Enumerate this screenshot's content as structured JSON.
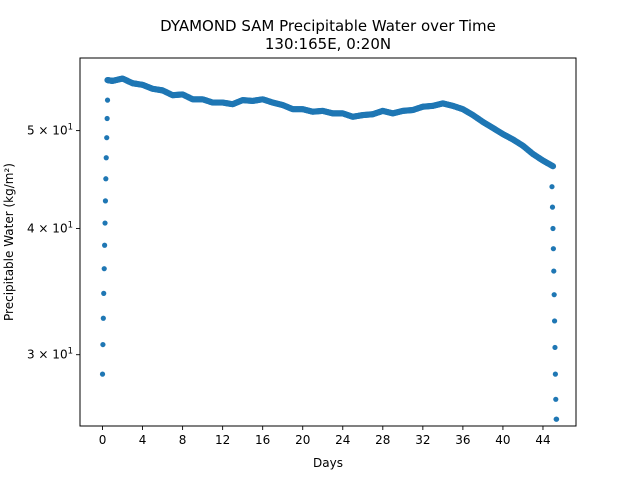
{
  "chart_data": {
    "type": "scatter",
    "title": "DYAMOND SAM Precipitable Water over Time",
    "subtitle": "130:165E, 0:20N",
    "xlabel": "Days",
    "ylabel": "Precipitable Water (kg/m²)",
    "xlim": [
      -2.25,
      47.3
    ],
    "ylim": [
      25.5,
      59.0
    ],
    "yscale": "log",
    "x_ticks": [
      0,
      4,
      8,
      12,
      16,
      20,
      24,
      28,
      32,
      36,
      40,
      44
    ],
    "y_ticks": [
      {
        "value": 30,
        "base": "3",
        "exp": "1"
      },
      {
        "value": 40,
        "base": "4",
        "exp": "1"
      },
      {
        "value": 50,
        "base": "5",
        "exp": "1"
      }
    ],
    "grid": false,
    "series_color": "#1f77b4",
    "series": [
      {
        "ramp_up": {
          "x": [
            0.0,
            0.04,
            0.08,
            0.12,
            0.17,
            0.21,
            0.25,
            0.29,
            0.33,
            0.37,
            0.42,
            0.46,
            0.5
          ],
          "y": [
            28.7,
            30.7,
            32.6,
            34.5,
            36.5,
            38.5,
            40.5,
            42.6,
            44.8,
            47.0,
            49.2,
            51.4,
            53.6
          ]
        },
        "main": {
          "x": [
            0.5,
            1,
            2,
            3,
            4,
            5,
            6,
            7,
            8,
            9,
            10,
            11,
            12,
            13,
            14,
            15,
            16,
            17,
            18,
            19,
            20,
            21,
            22,
            23,
            24,
            25,
            26,
            27,
            28,
            29,
            30,
            31,
            32,
            33,
            34,
            35,
            36,
            37,
            38,
            39,
            40,
            41,
            42,
            43,
            44,
            45
          ],
          "y": [
            56.1,
            56.0,
            56.3,
            55.7,
            55.5,
            55.0,
            54.8,
            54.2,
            54.3,
            53.7,
            53.7,
            53.3,
            53.3,
            53.1,
            53.6,
            53.5,
            53.7,
            53.3,
            53.0,
            52.5,
            52.5,
            52.2,
            52.3,
            52.0,
            52.0,
            51.6,
            51.8,
            51.9,
            52.3,
            52.0,
            52.3,
            52.4,
            52.8,
            52.9,
            53.2,
            52.9,
            52.5,
            51.8,
            51.0,
            50.3,
            49.6,
            49.0,
            48.3,
            47.4,
            46.7,
            46.1
          ]
        },
        "ramp_down": {
          "x": [
            44.9,
            44.95,
            45.0,
            45.04,
            45.08,
            45.12,
            45.16,
            45.2,
            45.24,
            45.28,
            45.32,
            45.36
          ],
          "y": [
            44.0,
            42.0,
            40.0,
            38.2,
            36.3,
            34.4,
            32.4,
            30.5,
            28.7,
            27.1,
            25.9,
            25.9
          ]
        }
      }
    ]
  }
}
